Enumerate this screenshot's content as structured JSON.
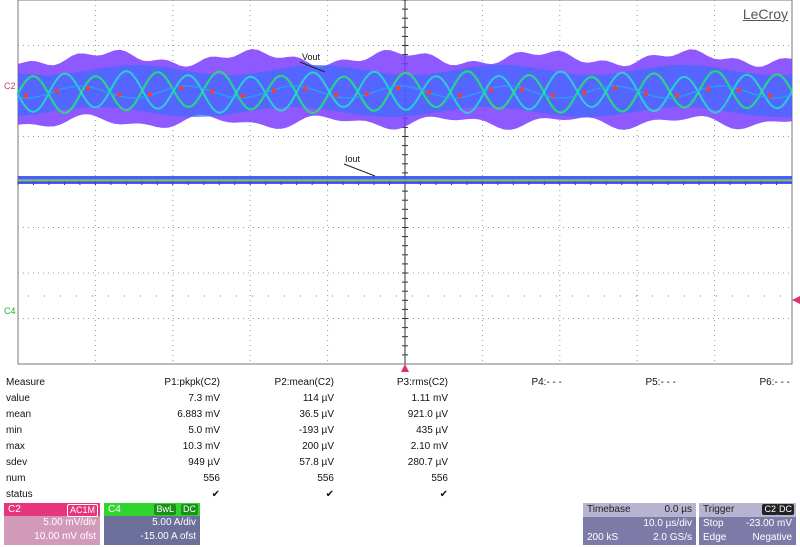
{
  "brand": "LeCroy",
  "traces": {
    "vout_label": "Vout",
    "iout_label": "Iout",
    "c2_marker": "C2",
    "c4_marker": "C4"
  },
  "measure": {
    "title": "Measure",
    "columns": [
      "P1:pkpk(C2)",
      "P2:mean(C2)",
      "P3:rms(C2)",
      "P4:- - -",
      "P5:- - -",
      "P6:- - -"
    ],
    "rows": [
      {
        "label": "value",
        "values": [
          "7.3 mV",
          "114 µV",
          "1.11 mV",
          "",
          "",
          ""
        ]
      },
      {
        "label": "mean",
        "values": [
          "6.883 mV",
          "36.5 µV",
          "921.0 µV",
          "",
          "",
          ""
        ]
      },
      {
        "label": "min",
        "values": [
          "5.0 mV",
          "-193 µV",
          "435 µV",
          "",
          "",
          ""
        ]
      },
      {
        "label": "max",
        "values": [
          "10.3 mV",
          "200 µV",
          "2.10 mV",
          "",
          "",
          ""
        ]
      },
      {
        "label": "sdev",
        "values": [
          "949 µV",
          "57.8 µV",
          "280.7 µV",
          "",
          "",
          ""
        ]
      },
      {
        "label": "num",
        "values": [
          "556",
          "556",
          "556",
          "",
          "",
          ""
        ]
      },
      {
        "label": "status",
        "values": [
          "✔",
          "✔",
          "✔",
          "",
          "",
          ""
        ]
      }
    ]
  },
  "c2_box": {
    "name": "C2",
    "tag": "AC1M",
    "line1": "5.00 mV/div",
    "line2": "10.00 mV ofst",
    "color": "#c0407f"
  },
  "c4_box": {
    "name": "C4",
    "tag1": "BwL",
    "tag2": "DC",
    "line1": "5.00 A/div",
    "line2": "-15.00 A ofst",
    "color": "#6b6f9a"
  },
  "timebase": {
    "title": "Timebase",
    "offset": "0.0 µs",
    "div": "10.0 µs/div",
    "samples": "200 kS",
    "rate": "2.0 GS/s"
  },
  "trigger": {
    "title": "Trigger",
    "source": "C2",
    "coupling": "DC",
    "mode": "Stop",
    "level": "-23.00 mV",
    "type": "Edge",
    "slope": "Negative"
  }
}
